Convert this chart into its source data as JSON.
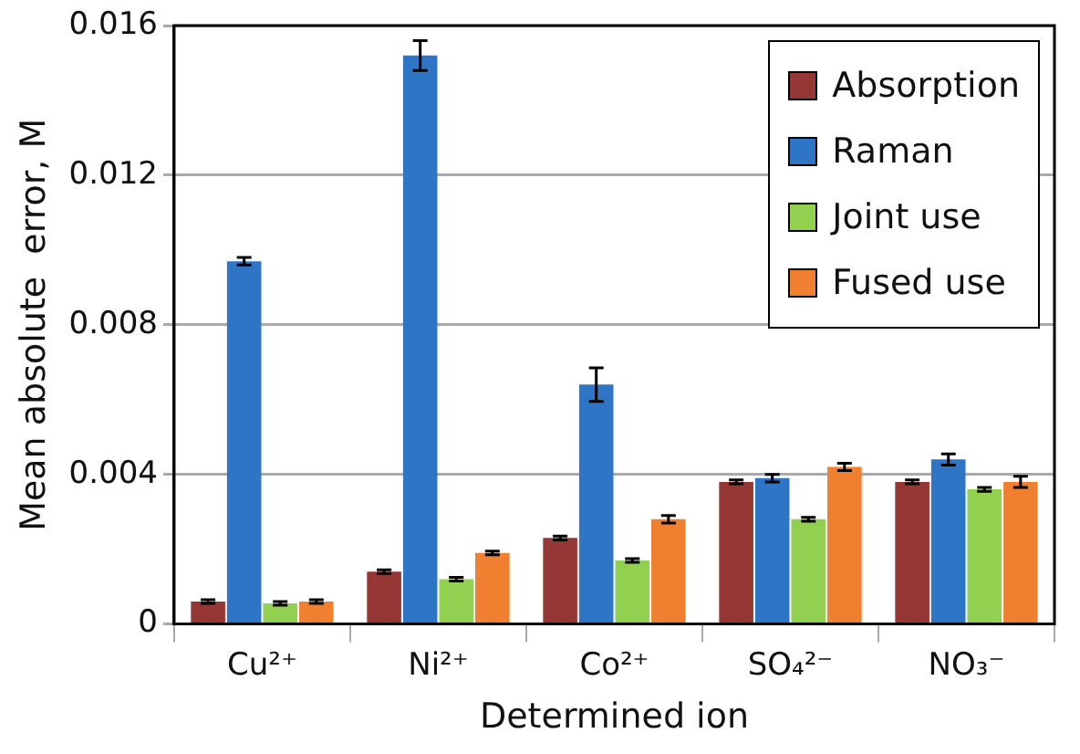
{
  "chart_data": {
    "type": "bar",
    "xlabel": "Determined ion",
    "ylabel": "Mean absolute  error, M",
    "categories": [
      "Cu²⁺",
      "Ni²⁺",
      "Co²⁺",
      "SO₄²⁻",
      "NO₃⁻"
    ],
    "series": [
      {
        "name": "Absorption",
        "color": "#953735",
        "values": [
          0.0006,
          0.0014,
          0.0023,
          0.0038,
          0.0038
        ],
        "errors": [
          5e-05,
          5e-05,
          5e-05,
          5e-05,
          5e-05
        ]
      },
      {
        "name": "Raman",
        "color": "#2e75c6",
        "values": [
          0.0097,
          0.0152,
          0.0064,
          0.0039,
          0.0044
        ],
        "errors": [
          0.0001,
          0.0004,
          0.00045,
          0.0001,
          0.00015
        ]
      },
      {
        "name": "Joint use",
        "color": "#92d050",
        "values": [
          0.00055,
          0.0012,
          0.0017,
          0.0028,
          0.0036
        ],
        "errors": [
          5e-05,
          5e-05,
          5e-05,
          5e-05,
          5e-05
        ]
      },
      {
        "name": "Fused use",
        "color": "#f08030",
        "values": [
          0.0006,
          0.0019,
          0.0028,
          0.0042,
          0.0038
        ],
        "errors": [
          5e-05,
          5e-05,
          0.0001,
          0.0001,
          0.00015
        ]
      }
    ],
    "ylim": [
      0,
      0.016
    ],
    "yticks": [
      0,
      0.004,
      0.008,
      0.012,
      0.016
    ],
    "grid": "y",
    "legend": "top right"
  }
}
